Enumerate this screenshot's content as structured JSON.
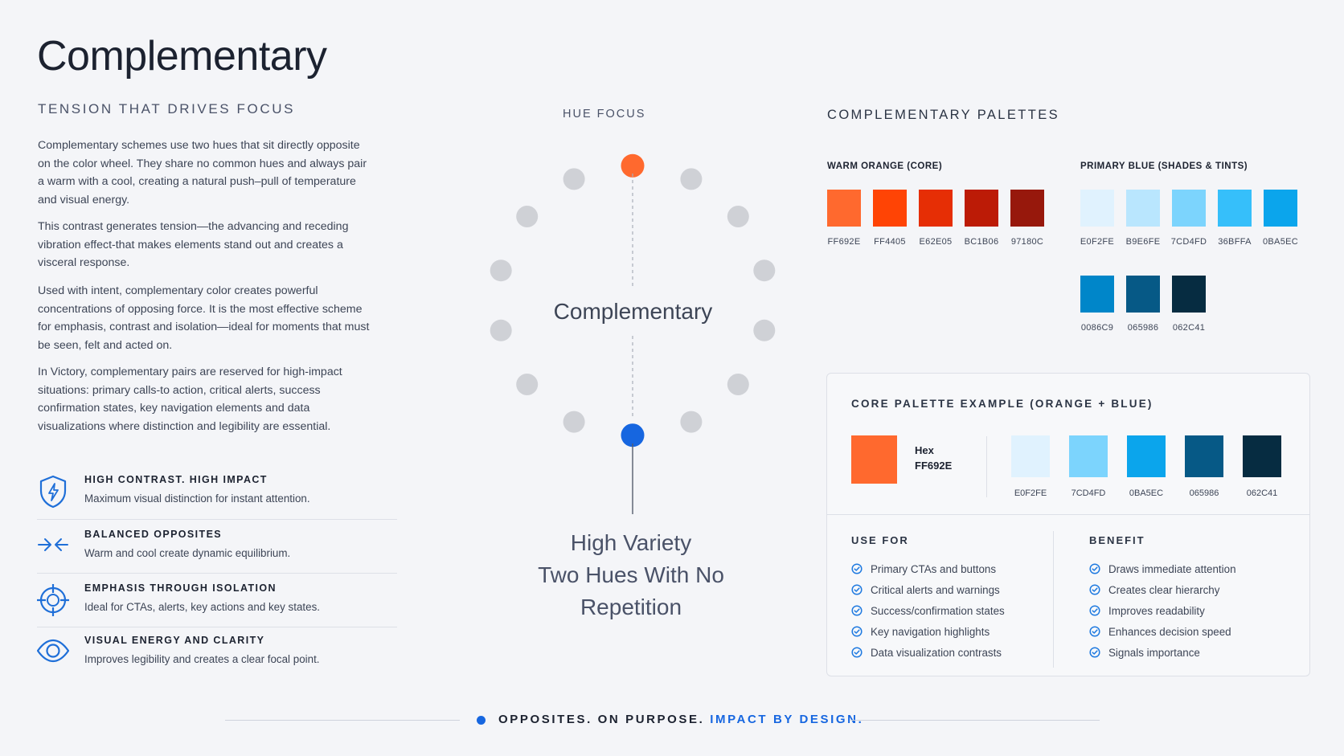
{
  "header": {
    "title": "Complementary",
    "subtitle": "TENSION THAT DRIVES FOCUS"
  },
  "paragraphs": [
    "Complementary schemes use two hues that sit directly opposite on the color wheel. They share no common hues and always pair a warm with a cool, creating a natural push–pull of temperature and visual energy.",
    "This contrast generates tension—the advancing and receding vibration effect-that makes elements stand out and creates a visceral response.",
    "Used with intent, complementary color creates powerful concentrations of opposing force. It is the most effective scheme for emphasis, contrast and isolation—ideal for moments that must be seen, felt and acted on.",
    "In Victory, complementary pairs are reserved for high-impact situations: primary calls-to action, critical alerts, success confirmation states, key navigation elements and data visualizations where distinction and legibility are essential."
  ],
  "features": [
    {
      "icon": "shield-bolt-icon",
      "title": "HIGH CONTRAST. HIGH IMPACT",
      "desc": "Maximum visual distinction for instant attention."
    },
    {
      "icon": "opposing-arrows-icon",
      "title": "BALANCED OPPOSITES",
      "desc": "Warm and cool create dynamic equilibrium."
    },
    {
      "icon": "crosshair-icon",
      "title": "EMPHASIS THROUGH ISOLATION",
      "desc": "Ideal for CTAs, alerts, key actions and key states."
    },
    {
      "icon": "eye-icon",
      "title": "VISUAL ENERGY AND CLARITY",
      "desc": "Improves legibility and creates a clear focal point."
    }
  ],
  "wheel": {
    "heading": "HUE FOCUS",
    "center_label": "Complementary",
    "top_color": "#FF692E",
    "bottom_color": "#1666E0",
    "inactive_color": "#cfd1d6",
    "tagline": [
      "High Variety",
      "Two Hues With No",
      "Repetition"
    ]
  },
  "palettes": {
    "heading": "COMPLEMENTARY PALETTES",
    "warm": {
      "label": "WARM ORANGE (CORE)",
      "swatches": [
        "FF692E",
        "FF4405",
        "E62E05",
        "BC1B06",
        "97180C"
      ]
    },
    "blue": {
      "label": "PRIMARY BLUE (SHADES & TINTS)",
      "row1": [
        "E0F2FE",
        "B9E6FE",
        "7CD4FD",
        "36BFFA",
        "0BA5EC"
      ],
      "row2": [
        "0086C9",
        "065986",
        "062C41"
      ]
    }
  },
  "core_example": {
    "title": "CORE PALETTE EXAMPLE (ORANGE + BLUE)",
    "hex_label": "Hex",
    "hex_value": "FF692E",
    "swatches": [
      "E0F2FE",
      "7CD4FD",
      "0BA5EC",
      "065986",
      "062C41"
    ],
    "use_for_title": "USE FOR",
    "use_for": [
      "Primary CTAs and buttons",
      "Critical alerts and warnings",
      "Success/confirmation states",
      "Key navigation highlights",
      "Data visualization contrasts"
    ],
    "benefit_title": "BENEFIT",
    "benefits": [
      "Draws immediate attention",
      "Creates clear hierarchy",
      "Improves readability",
      "Enhances decision speed",
      "Signals importance"
    ]
  },
  "footer": {
    "text": "OPPOSITES. ON PURPOSE.",
    "accent": "IMPACT BY DESIGN."
  },
  "colors": {
    "accent_blue": "#1666E0",
    "accent_orange": "#FF692E",
    "check_blue": "#1f7ae0"
  }
}
